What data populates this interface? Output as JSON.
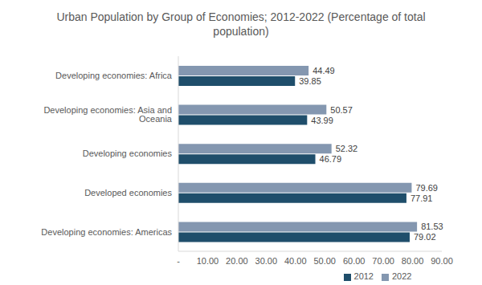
{
  "chart_data": {
    "type": "bar",
    "orientation": "horizontal",
    "title": "Urban Population by Group of Economies; 2012-2022 (Percentage of total population)",
    "categories": [
      "Developing economies: Africa",
      "Developing economies: Asia and Oceania",
      "Developing economies",
      "Developed economies",
      "Developing economies: Americas"
    ],
    "series": [
      {
        "name": "2022",
        "color": "#8497b0",
        "values": [
          44.49,
          50.57,
          52.32,
          79.69,
          81.53
        ]
      },
      {
        "name": "2012",
        "color": "#1f4e6b",
        "values": [
          39.85,
          43.99,
          46.79,
          77.91,
          79.02
        ]
      }
    ],
    "xlim": [
      0,
      90
    ],
    "xticks": [
      {
        "value": 0,
        "label": "-"
      },
      {
        "value": 10,
        "label": "10.00"
      },
      {
        "value": 20,
        "label": "20.00"
      },
      {
        "value": 30,
        "label": "30.00"
      },
      {
        "value": 40,
        "label": "40.00"
      },
      {
        "value": 50,
        "label": "50.00"
      },
      {
        "value": 60,
        "label": "60.00"
      },
      {
        "value": 70,
        "label": "70.00"
      },
      {
        "value": 80,
        "label": "80.00"
      },
      {
        "value": 90,
        "label": "90.00"
      }
    ],
    "grid": false,
    "legend": "bottom",
    "data_labels": true
  }
}
